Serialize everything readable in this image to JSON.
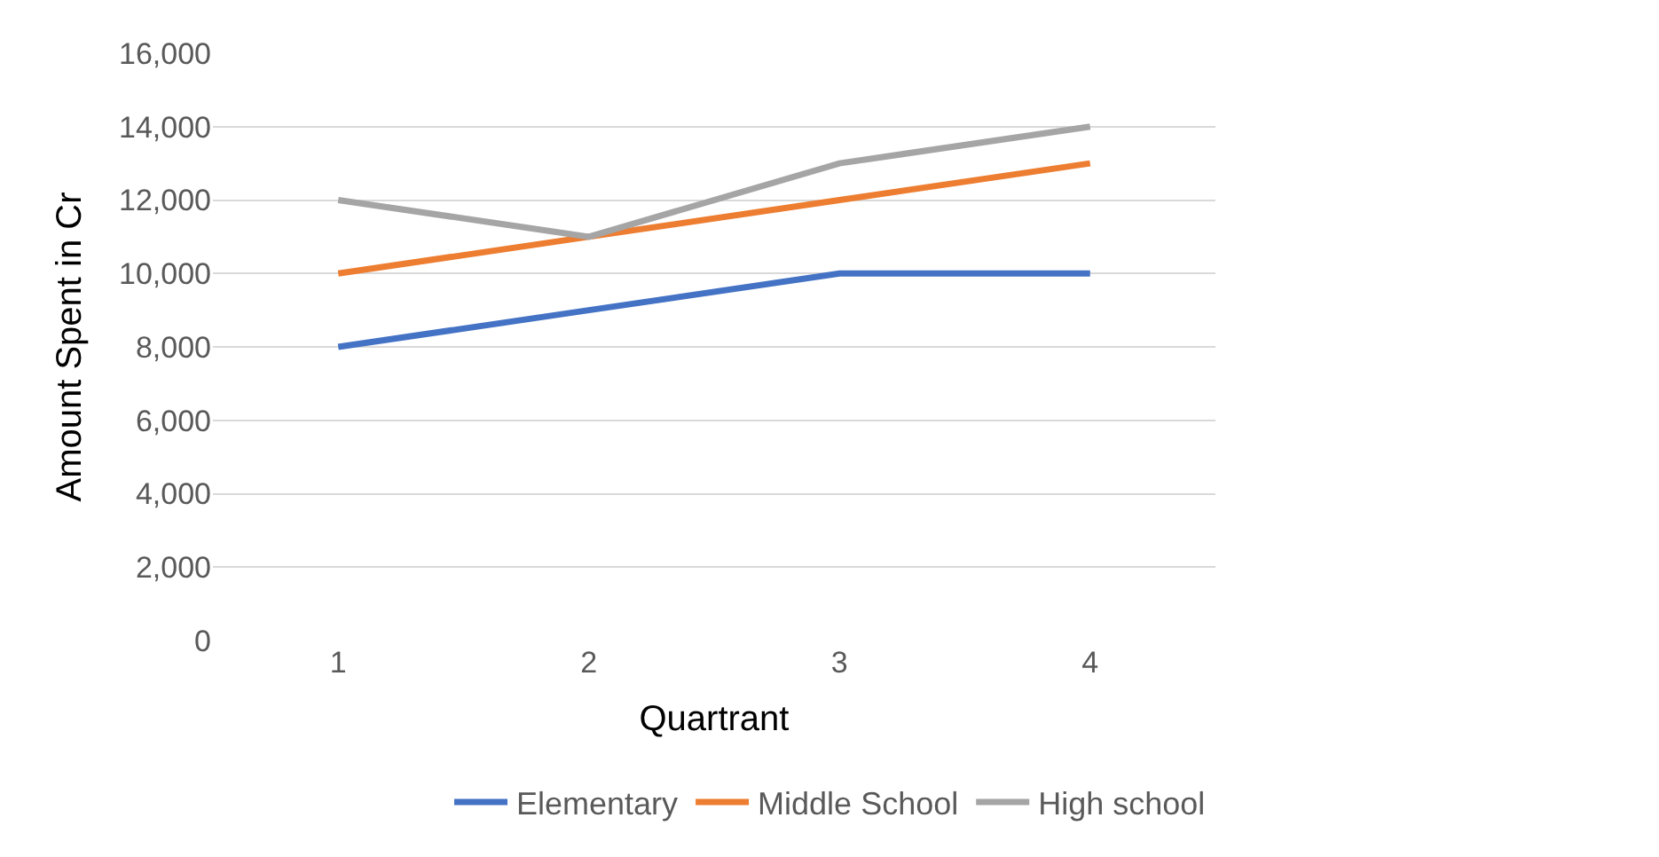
{
  "chart_data": {
    "type": "line",
    "xlabel": "Quartrant",
    "ylabel": "Amount Spent in Cr",
    "categories": [
      "1",
      "2",
      "3",
      "4"
    ],
    "series": [
      {
        "name": "Elementary",
        "color": "#4472c4",
        "values": [
          8000,
          9000,
          10000,
          10000
        ]
      },
      {
        "name": "Middle School",
        "color": "#ed7d31",
        "values": [
          10000,
          11000,
          12000,
          13000
        ]
      },
      {
        "name": "High school",
        "color": "#a5a5a5",
        "values": [
          12000,
          11000,
          13000,
          14000
        ]
      }
    ],
    "ylim": [
      0,
      16000
    ],
    "yticks": [
      {
        "value": 0,
        "label": "0"
      },
      {
        "value": 2000,
        "label": "2,000"
      },
      {
        "value": 4000,
        "label": "4,000"
      },
      {
        "value": 6000,
        "label": "6,000"
      },
      {
        "value": 8000,
        "label": "8,000"
      },
      {
        "value": 10000,
        "label": "10,000"
      },
      {
        "value": 12000,
        "label": "12,000"
      },
      {
        "value": 14000,
        "label": "14,000"
      },
      {
        "value": 16000,
        "label": "16,000"
      }
    ],
    "grid": "y",
    "legend": "bottom",
    "marker": "none",
    "line_style": "solid"
  }
}
